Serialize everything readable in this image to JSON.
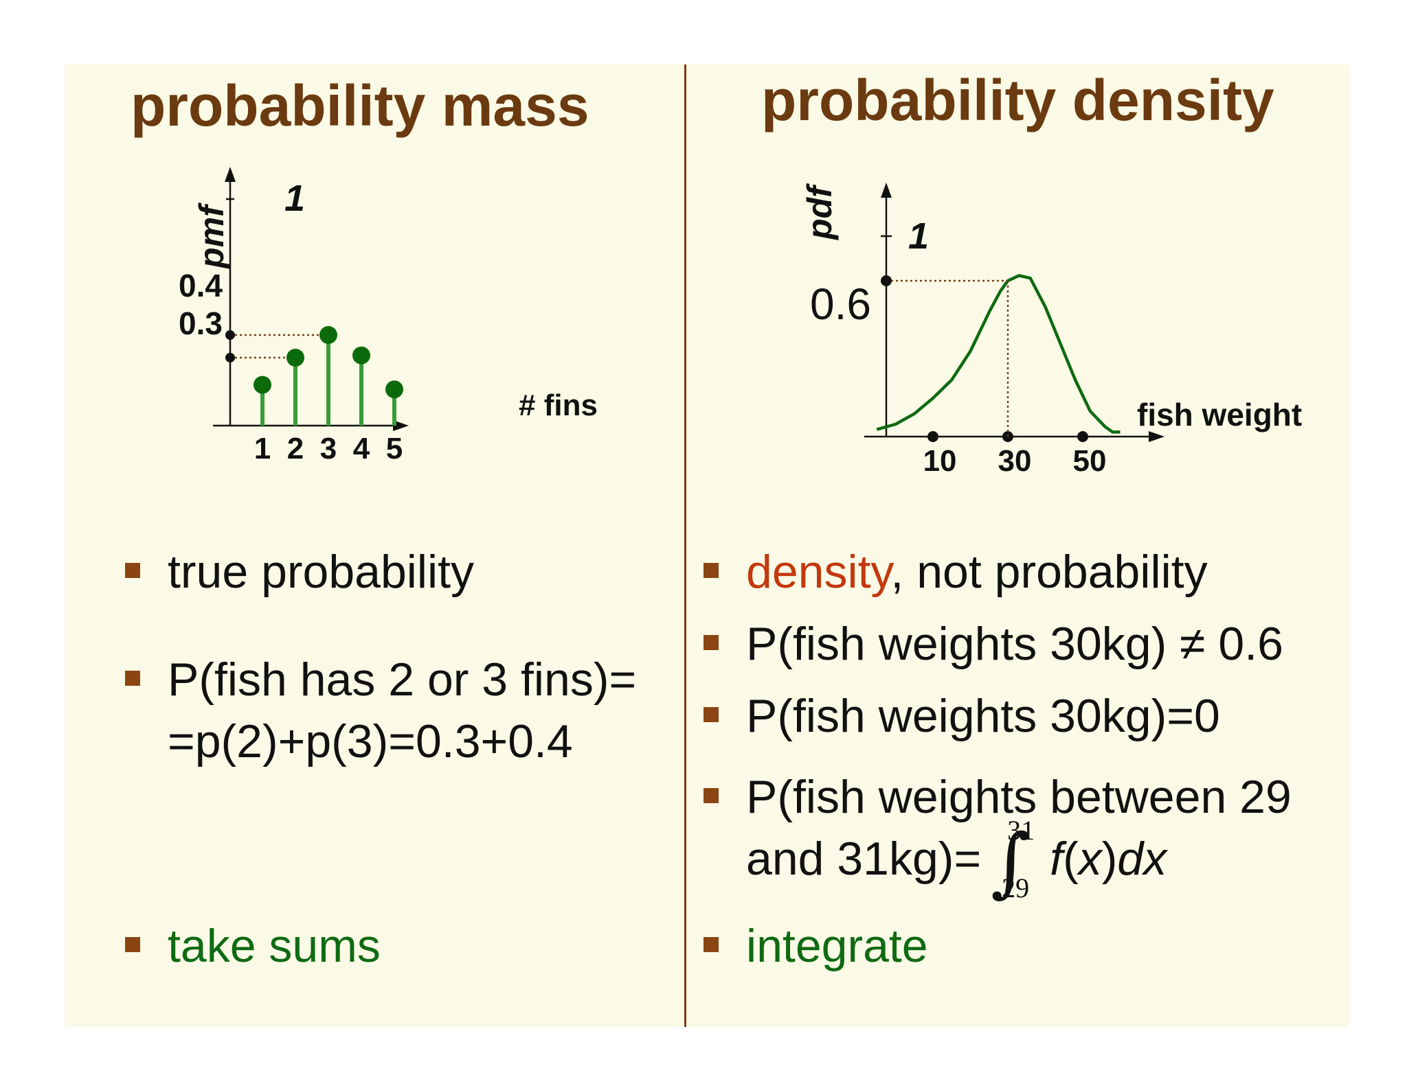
{
  "left": {
    "heading": "probability mass",
    "chart": {
      "ylabel": "pmf",
      "xlabel": "# fins",
      "ytick_top": "1",
      "ytick_04": "0.4",
      "ytick_03": "0.3",
      "xticks": [
        "1",
        "2",
        "3",
        "4",
        "5"
      ]
    },
    "bullets": [
      {
        "text": "true probability"
      },
      {
        "line1": "P(fish has 2 or 3 fins)=",
        "line2": "=p(2)+p(3)=0.3+0.4"
      },
      {
        "text": "take sums"
      }
    ]
  },
  "right": {
    "heading": "probability density",
    "chart": {
      "ylabel": "pdf",
      "xlabel": "fish weight",
      "ytick_top": "1",
      "ytick_06": "0.6",
      "xticks": [
        "10",
        "30",
        "50"
      ]
    },
    "bullets": [
      {
        "highlight": "density",
        "rest": ", not probability"
      },
      {
        "text": "P(fish weights 30kg) ≠ 0.6"
      },
      {
        "text": "P(fish weights 30kg)=0"
      },
      {
        "line1": "P(fish weights between 29",
        "line2": "and 31kg)=",
        "int_upper": "31",
        "int_lower": "29",
        "integrand_f": "f",
        "integrand_open": "(",
        "integrand_x": "x",
        "integrand_close": ")",
        "integrand_dx": "dx"
      },
      {
        "text": "integrate"
      }
    ]
  },
  "chart_data": [
    {
      "type": "bar",
      "title": "",
      "xlabel": "# fins",
      "ylabel": "pmf",
      "categories": [
        "1",
        "2",
        "3",
        "4",
        "5"
      ],
      "values": [
        0.18,
        0.3,
        0.4,
        0.31,
        0.16
      ],
      "ylim": [
        0,
        1
      ],
      "style": "stem",
      "color": "#3a9b3a",
      "marker_color": "#0b6b0b",
      "annotations": [
        {
          "y": 0.4,
          "x": 3
        },
        {
          "y": 0.3,
          "x": 2
        }
      ]
    },
    {
      "type": "line",
      "title": "",
      "xlabel": "fish weight",
      "ylabel": "pdf",
      "x": [
        -5,
        0,
        5,
        10,
        15,
        20,
        25,
        28,
        30,
        33,
        36,
        40,
        44,
        48,
        52,
        56,
        58,
        60
      ],
      "y": [
        0.03,
        0.05,
        0.09,
        0.15,
        0.22,
        0.33,
        0.48,
        0.56,
        0.6,
        0.62,
        0.61,
        0.5,
        0.36,
        0.22,
        0.1,
        0.04,
        0.02,
        0.02
      ],
      "xticks": [
        10,
        30,
        50
      ],
      "ylim": [
        0,
        1
      ],
      "color": "#0f6a12",
      "annotations": [
        {
          "y": 0.6,
          "x": 30
        }
      ]
    }
  ]
}
